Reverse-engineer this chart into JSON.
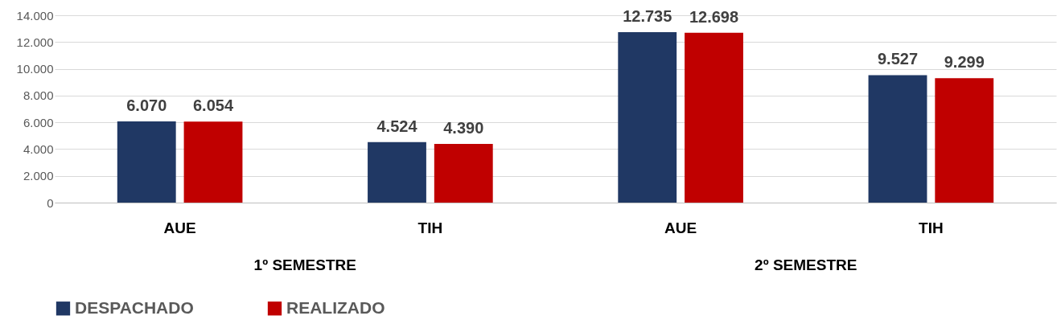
{
  "chart_data": {
    "type": "bar",
    "categories": [
      "AUE",
      "TIH",
      "AUE",
      "TIH"
    ],
    "series": [
      {
        "name": "DESPACHADO",
        "color": "#203864",
        "values": [
          6070,
          4524,
          12735,
          9527
        ],
        "value_labels": [
          "6.070",
          "4.524",
          "12.735",
          "9.527"
        ]
      },
      {
        "name": "REALIZADO",
        "color": "#c00000",
        "values": [
          6054,
          4390,
          12698,
          9299
        ],
        "value_labels": [
          "6.054",
          "4.390",
          "12.698",
          "9.299"
        ]
      }
    ],
    "ylim": [
      0,
      14000
    ],
    "yticks": [
      {
        "value": 0,
        "label": "0"
      },
      {
        "value": 2000,
        "label": "2.000"
      },
      {
        "value": 4000,
        "label": "4.000"
      },
      {
        "value": 6000,
        "label": "6.000"
      },
      {
        "value": 8000,
        "label": "8.000"
      },
      {
        "value": 10000,
        "label": "10.000"
      },
      {
        "value": 12000,
        "label": "12.000"
      },
      {
        "value": 14000,
        "label": "14.000"
      }
    ],
    "annotations": [
      "1º SEMESTRE",
      "2º SEMESTRE"
    ],
    "grid": "y",
    "legend": "bottom"
  }
}
